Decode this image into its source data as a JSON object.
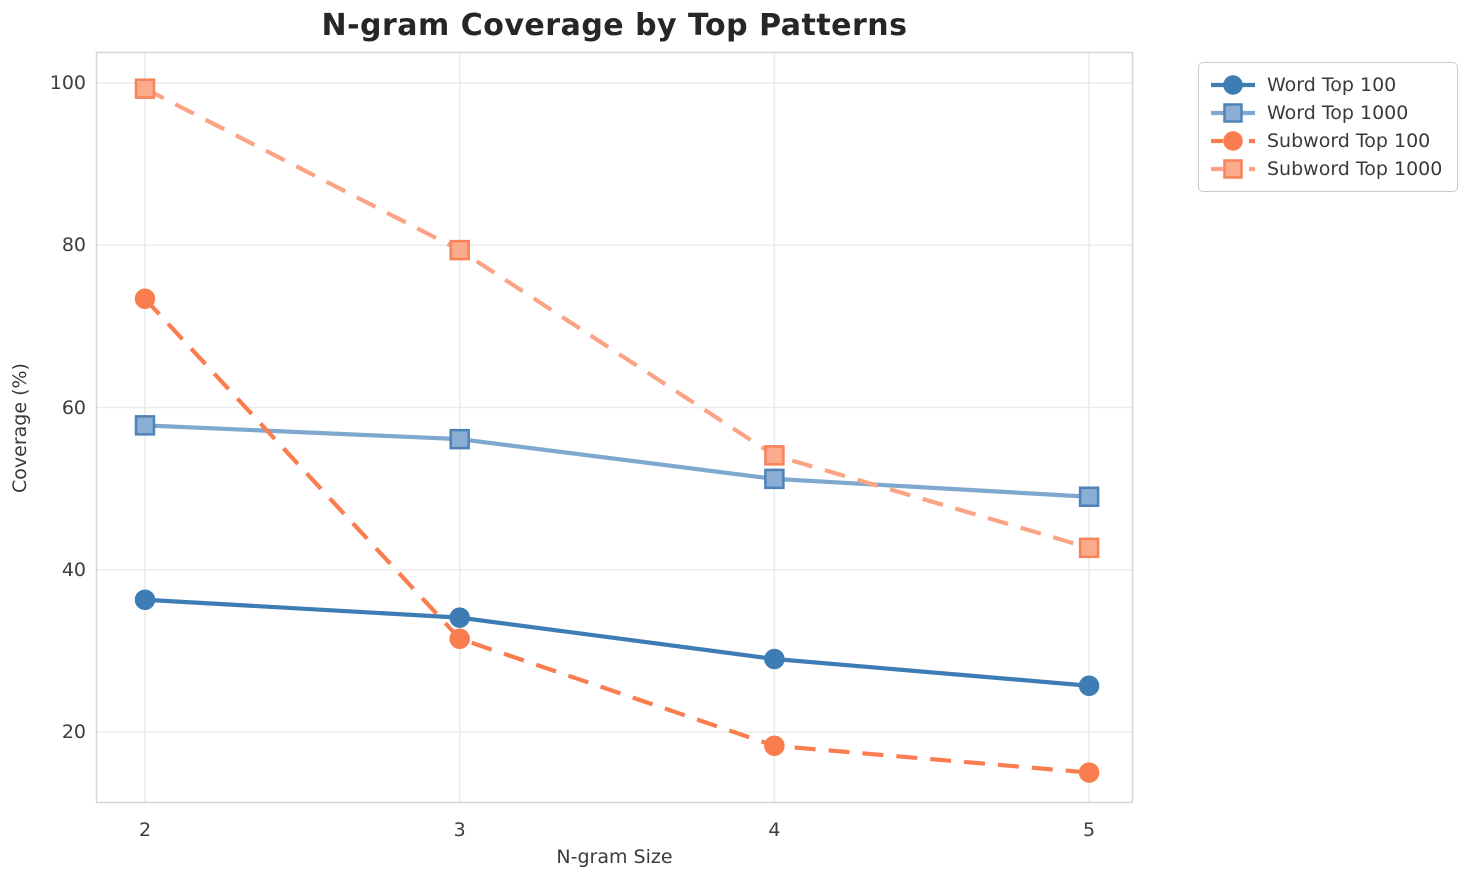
{
  "chart_data": {
    "type": "line",
    "title": "N-gram Coverage by Top Patterns",
    "xlabel": "N-gram Size",
    "ylabel": "Coverage (%)",
    "x": [
      2,
      3,
      4,
      5
    ],
    "x_tick_labels": [
      "2",
      "3",
      "4",
      "5"
    ],
    "y_ticks": [
      20,
      40,
      60,
      80,
      100
    ],
    "y_tick_labels": [
      "20",
      "40",
      "60",
      "80",
      "100"
    ],
    "xlim": [
      1.84,
      5.14
    ],
    "ylim": [
      11,
      104
    ],
    "grid": true,
    "legend_position": "upper-right-outside",
    "series": [
      {
        "name": "Word Top 100",
        "values": [
          36.3,
          34.1,
          29.0,
          25.7
        ],
        "color": "#3d7cb4",
        "marker": "circle",
        "marker_face": "#3d7cb4",
        "marker_edge": "#3d7cb4",
        "line_style": "solid"
      },
      {
        "name": "Word Top 1000",
        "values": [
          57.8,
          56.1,
          51.2,
          49.0
        ],
        "color": "#7fa8d0",
        "marker": "square",
        "marker_face": "#8aaed4",
        "marker_edge": "#4f83b8",
        "line_style": "solid"
      },
      {
        "name": "Subword Top 100",
        "values": [
          73.4,
          31.5,
          18.3,
          15.0
        ],
        "color": "#f97d4e",
        "marker": "circle",
        "marker_face": "#f97d4e",
        "marker_edge": "#f97d4e",
        "line_style": "dashed"
      },
      {
        "name": "Subword Top 1000",
        "values": [
          99.3,
          79.4,
          54.1,
          42.7
        ],
        "color": "#fba485",
        "marker": "square",
        "marker_face": "#fbaa8c",
        "marker_edge": "#f8825a",
        "line_style": "dashed"
      }
    ],
    "style": {
      "grid_color": "#ebebeb",
      "spine_color": "#d5d5d5",
      "background": "#ffffff",
      "title_color": "#262626",
      "tick_color": "#3d3d3d"
    }
  }
}
